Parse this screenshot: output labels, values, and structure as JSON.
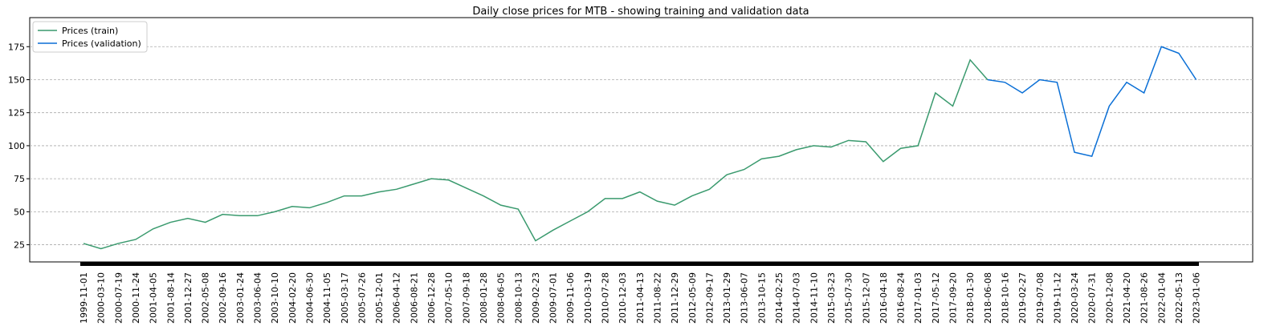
{
  "chart_data": {
    "type": "line",
    "title": "Daily close prices for MTB - showing training and validation data",
    "categories": [
      "1999-11-01",
      "2000-03-10",
      "2000-07-19",
      "2000-11-24",
      "2001-04-05",
      "2001-08-14",
      "2001-12-27",
      "2002-05-08",
      "2002-09-16",
      "2003-01-24",
      "2003-06-04",
      "2003-10-10",
      "2004-02-20",
      "2004-06-30",
      "2004-11-05",
      "2005-03-17",
      "2005-07-26",
      "2005-12-01",
      "2006-04-12",
      "2006-08-21",
      "2006-12-28",
      "2007-05-10",
      "2007-09-18",
      "2008-01-28",
      "2008-06-05",
      "2008-10-13",
      "2009-02-23",
      "2009-07-01",
      "2009-11-06",
      "2010-03-19",
      "2010-07-28",
      "2010-12-03",
      "2011-04-13",
      "2011-08-22",
      "2011-12-29",
      "2012-05-09",
      "2012-09-17",
      "2013-01-29",
      "2013-06-07",
      "2013-10-15",
      "2014-02-25",
      "2014-07-03",
      "2014-11-10",
      "2015-03-23",
      "2015-07-30",
      "2015-12-07",
      "2016-04-18",
      "2016-08-24",
      "2017-01-03",
      "2017-05-12",
      "2017-09-20",
      "2018-01-30",
      "2018-06-08",
      "2018-10-16",
      "2019-02-27",
      "2019-07-08",
      "2019-11-12",
      "2020-03-24",
      "2020-07-31",
      "2020-12-08",
      "2021-04-20",
      "2021-08-26",
      "2022-01-04",
      "2022-05-13",
      "2023-01-06"
    ],
    "series": [
      {
        "name": "Prices (train)",
        "color": "#3a9a6e",
        "values": [
          26,
          22,
          26,
          29,
          37,
          42,
          45,
          42,
          48,
          47,
          47,
          50,
          54,
          53,
          57,
          62,
          62,
          65,
          67,
          71,
          75,
          74,
          68,
          62,
          55,
          52,
          28,
          36,
          43,
          50,
          60,
          60,
          65,
          58,
          55,
          62,
          67,
          78,
          82,
          90,
          92,
          97,
          100,
          99,
          104,
          103,
          88,
          98,
          100,
          140,
          130,
          165,
          150,
          null,
          null,
          null,
          null,
          null,
          null,
          null,
          null,
          null,
          null,
          null,
          null
        ]
      },
      {
        "name": "Prices (validation)",
        "color": "#0a6fd6",
        "values": [
          null,
          null,
          null,
          null,
          null,
          null,
          null,
          null,
          null,
          null,
          null,
          null,
          null,
          null,
          null,
          null,
          null,
          null,
          null,
          null,
          null,
          null,
          null,
          null,
          null,
          null,
          null,
          null,
          null,
          null,
          null,
          null,
          null,
          null,
          null,
          null,
          null,
          null,
          null,
          null,
          null,
          null,
          null,
          null,
          null,
          null,
          null,
          null,
          null,
          null,
          null,
          null,
          150,
          148,
          140,
          150,
          148,
          95,
          92,
          130,
          148,
          140,
          175,
          170,
          150
        ]
      }
    ],
    "ylim": [
      12,
      197
    ],
    "yticks": [
      25,
      50,
      75,
      100,
      125,
      150,
      175
    ],
    "grid": true,
    "legend": "upper left"
  }
}
